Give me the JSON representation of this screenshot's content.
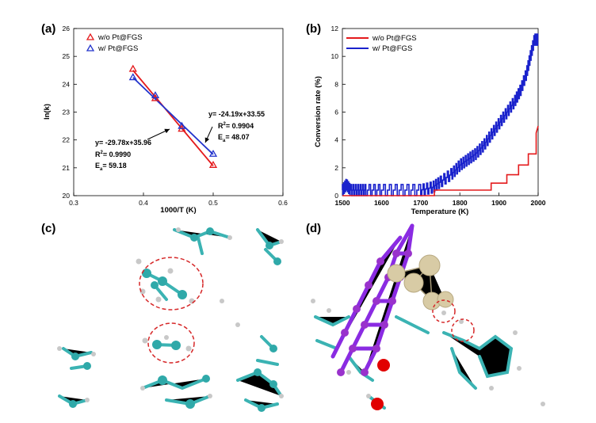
{
  "panels": {
    "a": "(a)",
    "b": "(b)",
    "c": "(c)",
    "d": "(d)"
  },
  "chart_data": [
    {
      "id": "a",
      "type": "scatter",
      "xlabel": "1000/T (K)",
      "ylabel": "ln(k)",
      "xlim": [
        0.3,
        0.6
      ],
      "ylim": [
        20,
        26
      ],
      "xticks": [
        "0.3",
        "0.4",
        "0.5",
        "0.6"
      ],
      "yticks": [
        "20",
        "21",
        "22",
        "23",
        "24",
        "25",
        "26"
      ],
      "legend_position": "top-left",
      "series": [
        {
          "name": "w/o Pt@FGS",
          "color": "#e41a1c",
          "x": [
            0.385,
            0.417,
            0.455,
            0.5
          ],
          "y": [
            24.55,
            23.5,
            22.4,
            21.1
          ],
          "fit": [
            [
              0.385,
              24.5
            ],
            [
              0.5,
              21.07
            ]
          ],
          "annotation": [
            "y= -29.78x+35.96",
            "R2= 0.9990",
            "Ea= 59.18"
          ]
        },
        {
          "name": "w/ Pt@FGS",
          "color": "#2233cc",
          "x": [
            0.385,
            0.417,
            0.455,
            0.5
          ],
          "y": [
            24.25,
            23.6,
            22.5,
            21.5
          ],
          "fit": [
            [
              0.385,
              24.24
            ],
            [
              0.5,
              21.48
            ]
          ],
          "annotation": [
            "y= -24.19x+33.55",
            "R2= 0.9904",
            "Ea= 48.07"
          ]
        }
      ]
    },
    {
      "id": "b",
      "type": "line",
      "xlabel": "Temperature (K)",
      "ylabel": "Conversion rate (%)",
      "xlim": [
        1500,
        2000
      ],
      "ylim": [
        0,
        12
      ],
      "xticks": [
        "1500",
        "1600",
        "1700",
        "1800",
        "1900",
        "2000"
      ],
      "yticks": [
        "0",
        "2",
        "4",
        "6",
        "8",
        "10",
        "12"
      ],
      "legend_position": "top-left",
      "series": [
        {
          "name": "w/o Pt@FGS",
          "color": "#e41a1c",
          "x": [
            1500,
            1735,
            1735,
            1880,
            1880,
            1920,
            1920,
            1950,
            1950,
            1975,
            1975,
            1995,
            1995,
            2000
          ],
          "y": [
            0,
            0,
            0.4,
            0.4,
            0.9,
            0.9,
            1.5,
            1.5,
            2.2,
            2.2,
            3.0,
            3.0,
            4.5,
            5.0
          ]
        },
        {
          "name": "w/ Pt@FGS",
          "color": "#1a22cc",
          "x": [
            1500,
            1510,
            1520,
            1540,
            1560,
            1600,
            1650,
            1700,
            1730,
            1750,
            1780,
            1800,
            1820,
            1840,
            1860,
            1880,
            1900,
            1920,
            1940,
            1955,
            1970,
            1980,
            1990,
            2000
          ],
          "y": [
            0.4,
            0.8,
            0.4,
            0.4,
            0.4,
            0.4,
            0.4,
            0.4,
            0.6,
            1.0,
            1.6,
            2.2,
            2.6,
            3.0,
            3.6,
            4.4,
            5.2,
            6.0,
            6.8,
            7.6,
            8.8,
            10.0,
            11.2,
            11.2
          ]
        }
      ]
    }
  ]
}
